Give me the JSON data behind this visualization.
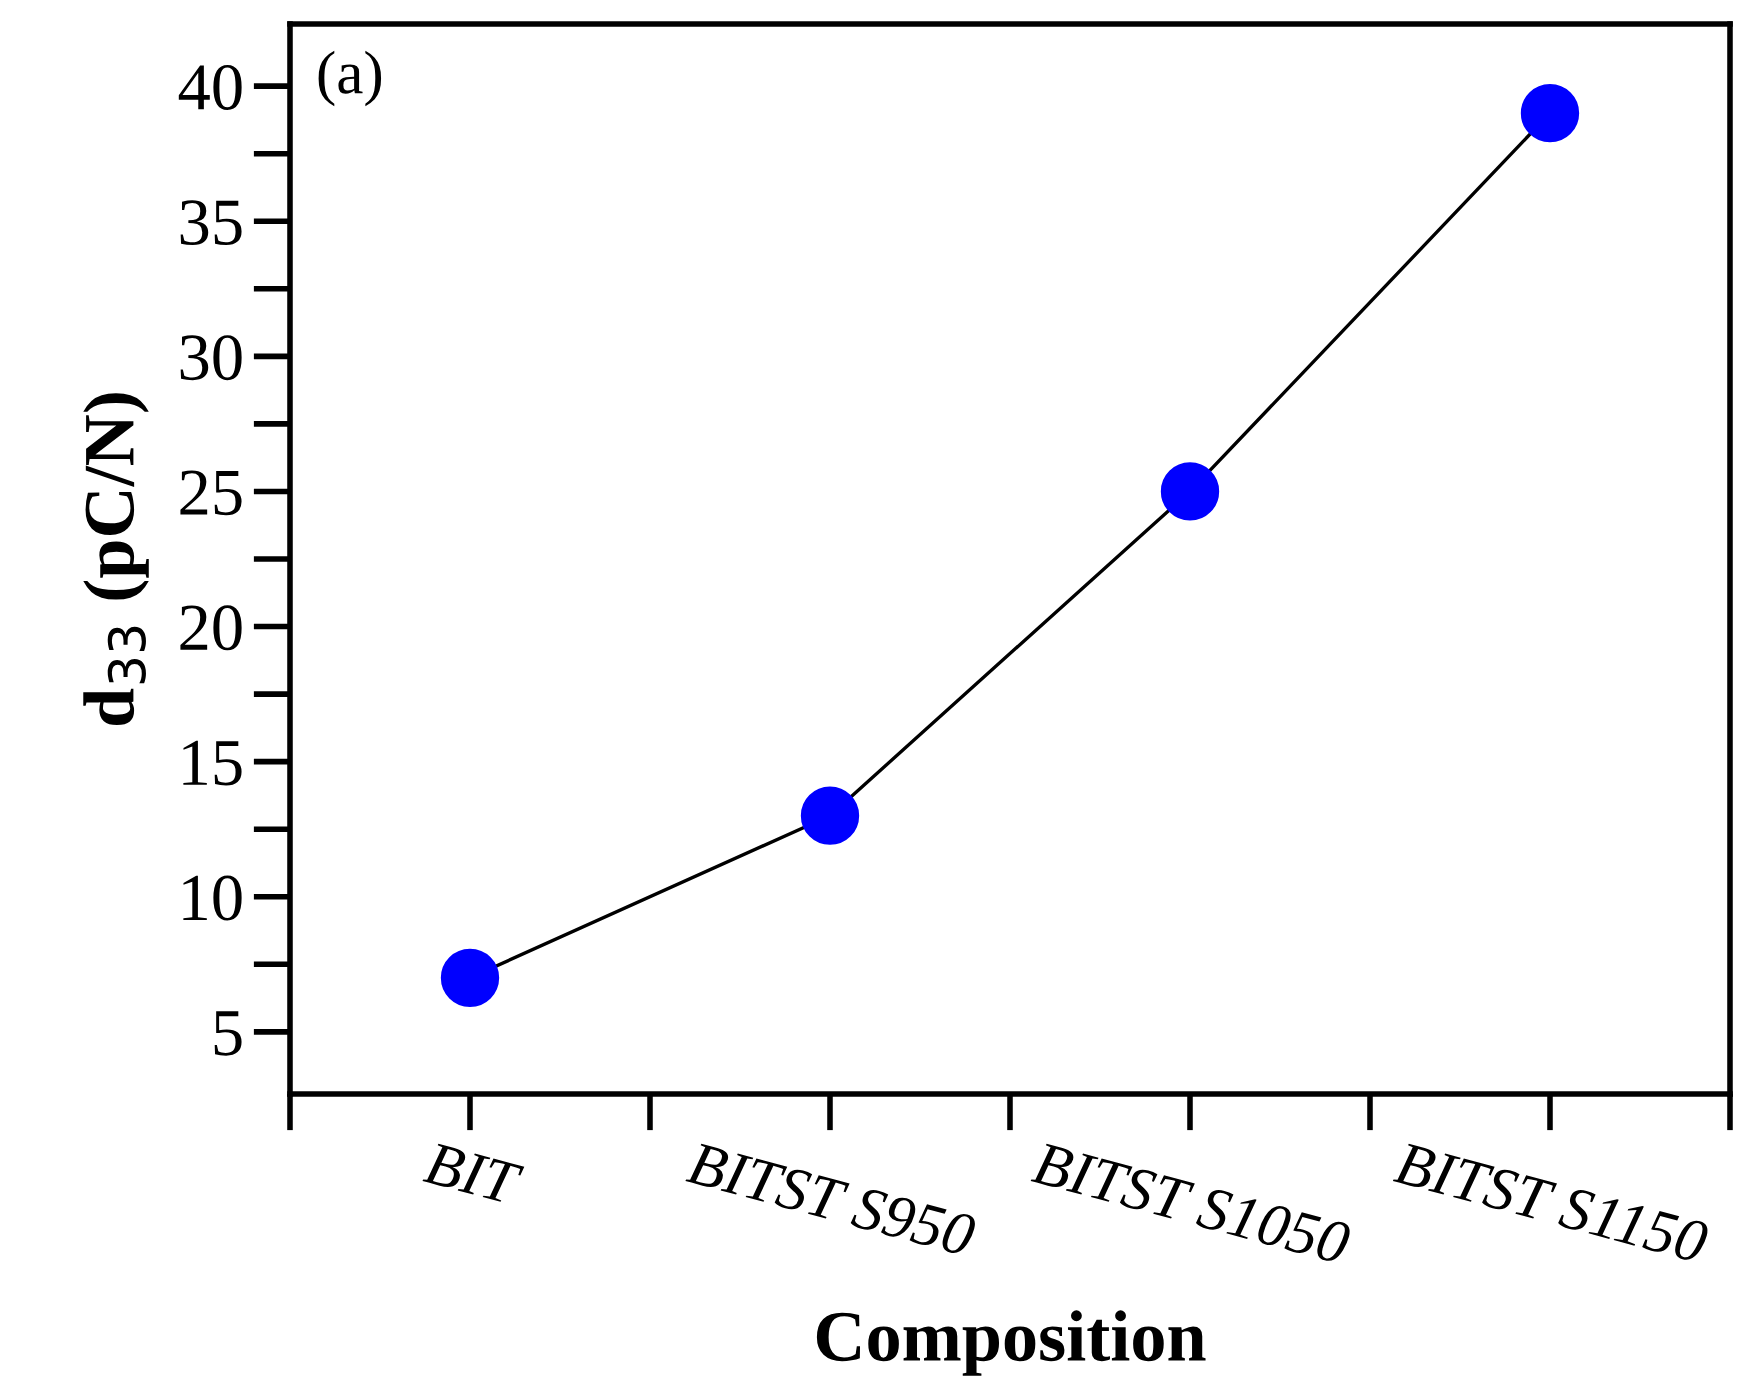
{
  "chart_data": {
    "type": "line",
    "xlabel": "Composition",
    "ylabel": "d$_{33}$ (pC/N)",
    "annotations": [
      "(a)"
    ],
    "categories": [
      "BIT",
      "BITST S950",
      "BITST S1050",
      "BITST S1150"
    ],
    "series": [
      {
        "color": "#0000ff",
        "values": [
          7,
          13,
          25,
          39
        ]
      }
    ],
    "ylim": [
      2.7,
      42.3
    ],
    "yticks": [
      5,
      10,
      15,
      20,
      25,
      30,
      35,
      40
    ],
    "marker": "circle",
    "line_style": "solid"
  }
}
